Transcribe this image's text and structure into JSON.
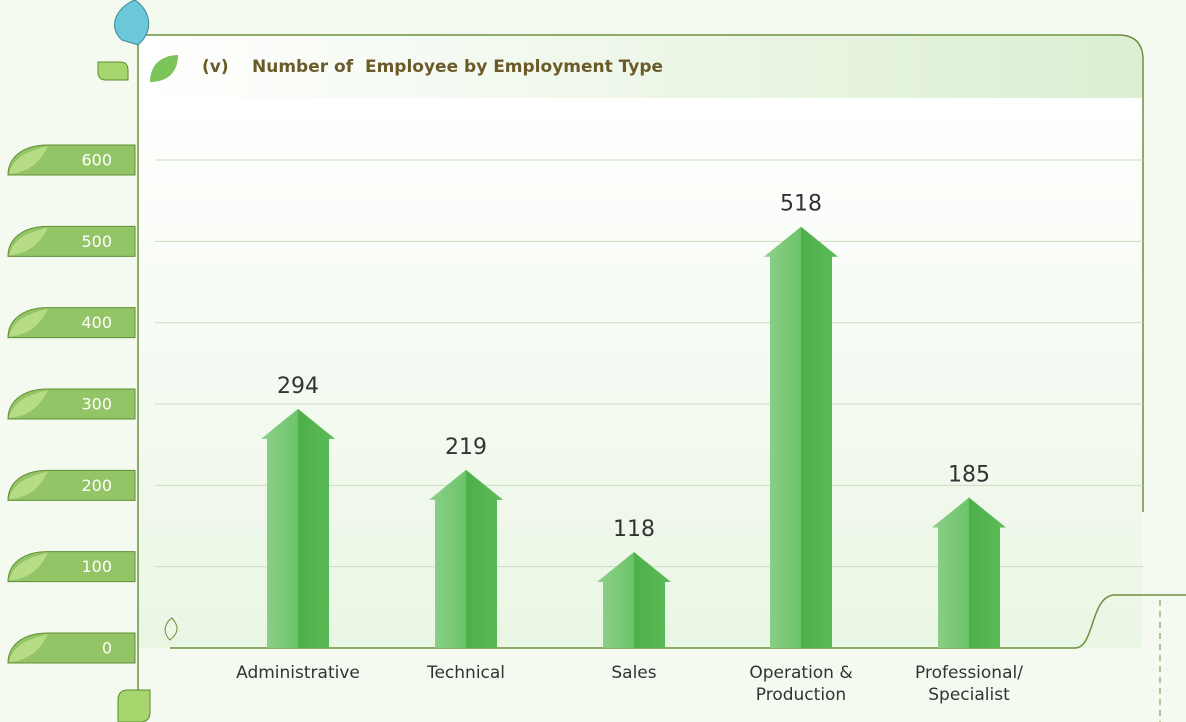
{
  "chart_data": {
    "type": "bar",
    "label": "(v)",
    "title": "Number of  Employee by Employment Type",
    "categories": [
      "Administrative",
      "Technical",
      "Sales",
      "Operation & Production",
      "Professional/ Specialist"
    ],
    "values": [
      294,
      219,
      118,
      518,
      185
    ],
    "color": "#5cb85c",
    "ylim": [
      0,
      600
    ],
    "yticks": [
      0,
      100,
      200,
      300,
      400,
      500,
      600
    ],
    "grid": true
  }
}
